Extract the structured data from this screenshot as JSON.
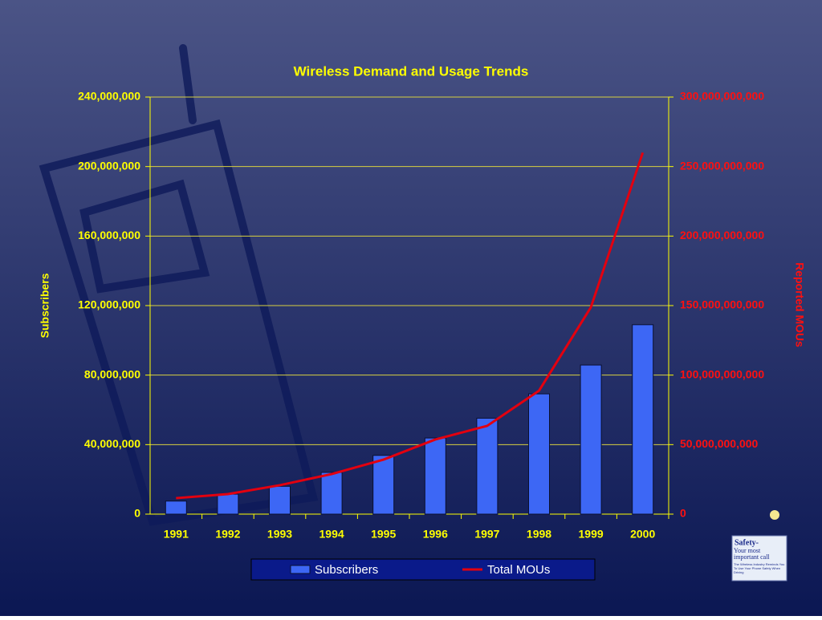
{
  "chart_data": {
    "type": "combo",
    "title": "Wireless Demand and Usage Trends",
    "y_label": "Subscribers",
    "y2_label": "Reported MOUs",
    "categories": [
      "1991",
      "1992",
      "1993",
      "1994",
      "1995",
      "1996",
      "1997",
      "1998",
      "1999",
      "2000"
    ],
    "series": [
      {
        "name": "Subscribers",
        "type": "bar",
        "color": "#3d67f5",
        "values": [
          7500000,
          11500000,
          16000000,
          24000000,
          33800000,
          43800000,
          55200000,
          69200000,
          85800000,
          109000000
        ]
      },
      {
        "name": "Total MOUs",
        "type": "line",
        "axis": "y2",
        "color": "#e3000f",
        "values": [
          11500000000,
          14400000000,
          20800000000,
          28800000000,
          39200000000,
          53700000000,
          63500000000,
          88800000000,
          148800000000,
          260000000000
        ]
      }
    ],
    "ylim": [
      0,
      240000000
    ],
    "yticks": [
      0,
      {
        "value": 40000000,
        "label": "40,000,000"
      },
      {
        "value": 80000000,
        "label": "80,000,000"
      },
      {
        "value": 120000000,
        "label": "120,000,000"
      },
      {
        "value": 160000000,
        "label": "160,000,000"
      },
      {
        "value": 200000000,
        "label": "200,000,000"
      },
      {
        "value": 240000000,
        "label": "240,000,000"
      }
    ],
    "y2lim": [
      0,
      300000000000
    ],
    "y2ticks": [
      0,
      {
        "value": 50000000000,
        "label": "50,000,000,000"
      },
      {
        "value": 100000000000,
        "label": "100,000,000,000"
      },
      {
        "value": 150000000000,
        "label": "150,000,000,000"
      },
      {
        "value": 200000000000,
        "label": "200,000,000,000"
      },
      {
        "value": 250000000000,
        "label": "250,000,000,000"
      },
      {
        "value": 300000000000,
        "label": "300,000,000,000"
      }
    ],
    "grid": true,
    "legend": "bottom"
  },
  "logo": {
    "title": "Safety-",
    "tagline": "Your most important call",
    "note": "The Wireless Industry Reminds You To Use Your Phone Safely When Driving"
  }
}
